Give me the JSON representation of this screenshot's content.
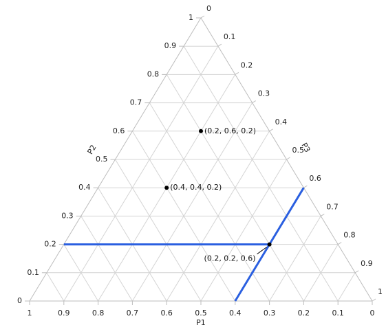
{
  "chart_data": {
    "type": "ternary",
    "axes": {
      "P1": {
        "label": "P1",
        "ticks": [
          "1",
          "0.9",
          "0.8",
          "0.7",
          "0.6",
          "0.5",
          "0.4",
          "0.3",
          "0.2",
          "0.1",
          "0"
        ]
      },
      "P2": {
        "label": "P2",
        "ticks": [
          "0",
          "0.1",
          "0.2",
          "0.3",
          "0.4",
          "0.5",
          "0.6",
          "0.7",
          "0.8",
          "0.9",
          "1"
        ]
      },
      "P3": {
        "label": "P3",
        "ticks": [
          "0",
          "0.1",
          "0.2",
          "0.3",
          "0.4",
          "0.5",
          "0.6",
          "0.7",
          "0.8",
          "0.9",
          "1"
        ]
      }
    },
    "grid": true,
    "grid_step": 0.1,
    "points": [
      {
        "p1": 0.2,
        "p2": 0.6,
        "p3": 0.2,
        "label": "(0.2, 0.6, 0.2)"
      },
      {
        "p1": 0.4,
        "p2": 0.4,
        "p3": 0.2,
        "label": "(0.4, 0.4, 0.2)"
      },
      {
        "p1": 0.2,
        "p2": 0.2,
        "p3": 0.6,
        "label": "(0.2, 0.2, 0.6)"
      }
    ],
    "highlight_point_index": 2,
    "colors": {
      "grid": "#d4d4d4",
      "frame": "#bdbdbd",
      "highlight": "#2a5fe0",
      "point": "#000000",
      "text": "#222222"
    }
  }
}
